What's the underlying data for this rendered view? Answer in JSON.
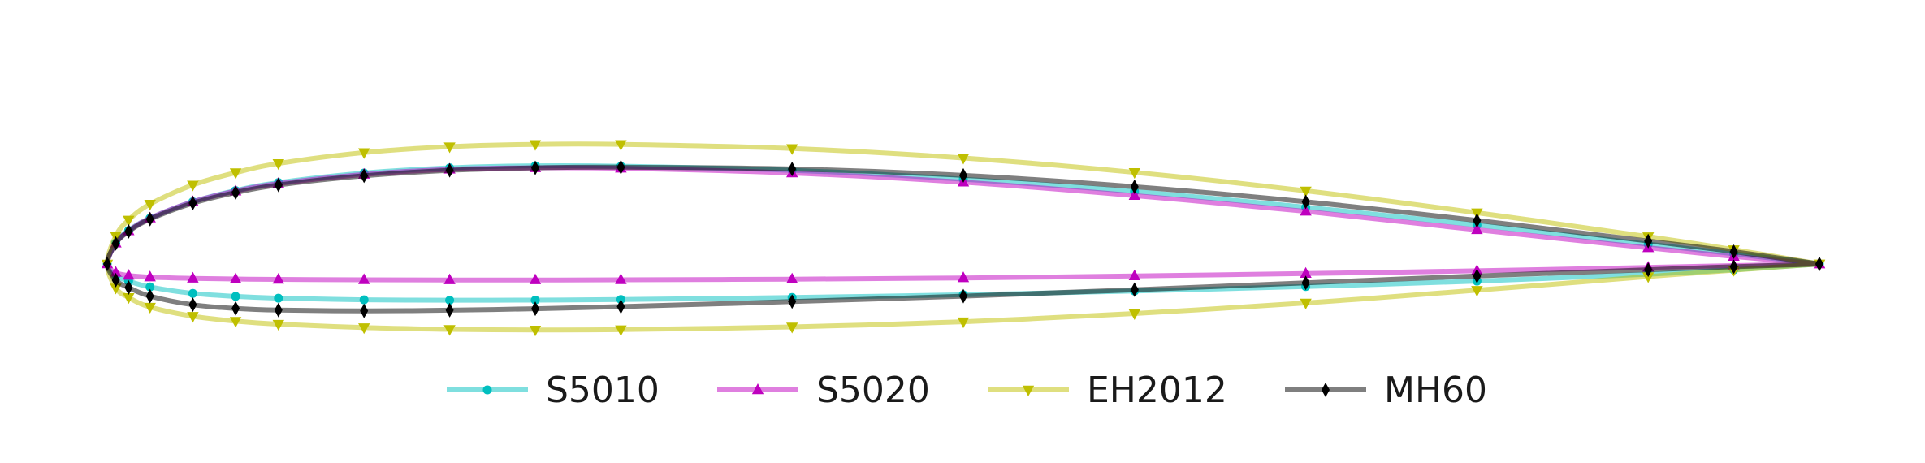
{
  "chart_data": {
    "type": "line",
    "title": "",
    "xlabel": "",
    "ylabel": "",
    "xlim": [
      -0.005,
      1.0
    ],
    "ylim": [
      -0.09,
      0.16
    ],
    "axes_visible": false,
    "grid": false,
    "legend_position": "bottom-center",
    "series": [
      {
        "name": "S5010",
        "color": "#00bfbf",
        "line_alpha": 0.5,
        "marker": "circle",
        "x": [
          1.0,
          0.95,
          0.9,
          0.8,
          0.7,
          0.6,
          0.5,
          0.4,
          0.3,
          0.25,
          0.2,
          0.15,
          0.1,
          0.075,
          0.05,
          0.025,
          0.0125,
          0.005,
          0.0,
          0.005,
          0.0125,
          0.025,
          0.05,
          0.075,
          0.1,
          0.15,
          0.2,
          0.25,
          0.3,
          0.4,
          0.5,
          0.6,
          0.7,
          0.8,
          0.9,
          0.95,
          1.0
        ],
        "y": [
          0.0,
          0.0075,
          0.0145,
          0.0285,
          0.0415,
          0.053,
          0.062,
          0.0685,
          0.0715,
          0.0718,
          0.0703,
          0.0665,
          0.0595,
          0.0537,
          0.0455,
          0.0335,
          0.0245,
          0.0155,
          0.0,
          -0.0085,
          -0.0125,
          -0.0168,
          -0.0215,
          -0.0237,
          -0.025,
          -0.0262,
          -0.0265,
          -0.0264,
          -0.026,
          -0.0245,
          -0.0225,
          -0.0197,
          -0.0165,
          -0.0125,
          -0.0075,
          -0.0042,
          0.0
        ]
      },
      {
        "name": "S5020",
        "color": "#bf00bf",
        "line_alpha": 0.5,
        "marker": "triangle-up",
        "x": [
          1.0,
          0.95,
          0.9,
          0.8,
          0.7,
          0.6,
          0.5,
          0.4,
          0.3,
          0.25,
          0.2,
          0.15,
          0.1,
          0.075,
          0.05,
          0.025,
          0.0125,
          0.005,
          0.0,
          0.005,
          0.0125,
          0.025,
          0.05,
          0.075,
          0.1,
          0.15,
          0.2,
          0.25,
          0.3,
          0.4,
          0.5,
          0.6,
          0.7,
          0.8,
          0.9,
          0.95,
          1.0
        ],
        "y": [
          0.0,
          0.0055,
          0.0118,
          0.025,
          0.0385,
          0.05,
          0.0598,
          0.0665,
          0.07,
          0.0703,
          0.0692,
          0.0655,
          0.0588,
          0.0533,
          0.0455,
          0.0335,
          0.0242,
          0.0152,
          0.0,
          -0.0062,
          -0.0084,
          -0.0096,
          -0.0105,
          -0.011,
          -0.0113,
          -0.0116,
          -0.0117,
          -0.0117,
          -0.0116,
          -0.0111,
          -0.0102,
          -0.0088,
          -0.007,
          -0.005,
          -0.0025,
          -0.0012,
          0.0
        ]
      },
      {
        "name": "EH2012",
        "color": "#bfbf00",
        "line_alpha": 0.5,
        "marker": "triangle-down",
        "x": [
          1.0,
          0.95,
          0.9,
          0.8,
          0.7,
          0.6,
          0.5,
          0.4,
          0.3,
          0.25,
          0.2,
          0.15,
          0.1,
          0.075,
          0.05,
          0.025,
          0.0125,
          0.005,
          0.0,
          0.005,
          0.0125,
          0.025,
          0.05,
          0.075,
          0.1,
          0.15,
          0.2,
          0.25,
          0.3,
          0.4,
          0.5,
          0.6,
          0.7,
          0.8,
          0.9,
          0.95,
          1.0
        ],
        "y": [
          0.0,
          0.0105,
          0.02,
          0.0375,
          0.0535,
          0.067,
          0.0775,
          0.0845,
          0.0875,
          0.0875,
          0.0858,
          0.0815,
          0.0735,
          0.0668,
          0.0578,
          0.0438,
          0.0322,
          0.0205,
          0.0,
          -0.0175,
          -0.0245,
          -0.0315,
          -0.0382,
          -0.0418,
          -0.044,
          -0.0465,
          -0.0478,
          -0.0482,
          -0.048,
          -0.046,
          -0.0422,
          -0.0362,
          -0.0285,
          -0.0192,
          -0.0092,
          -0.0045,
          0.0
        ]
      },
      {
        "name": "MH60",
        "color": "#000000",
        "line_alpha": 0.5,
        "marker": "thin-diamond",
        "x": [
          1.0,
          0.95,
          0.9,
          0.8,
          0.7,
          0.6,
          0.5,
          0.4,
          0.3,
          0.25,
          0.2,
          0.15,
          0.1,
          0.075,
          0.05,
          0.025,
          0.0125,
          0.005,
          0.0,
          0.005,
          0.0125,
          0.025,
          0.05,
          0.075,
          0.1,
          0.15,
          0.2,
          0.25,
          0.3,
          0.4,
          0.5,
          0.6,
          0.7,
          0.8,
          0.9,
          0.95,
          1.0
        ],
        "y": [
          0.0,
          0.009,
          0.0168,
          0.0318,
          0.0455,
          0.0565,
          0.0648,
          0.0695,
          0.0708,
          0.0703,
          0.0685,
          0.0645,
          0.0578,
          0.0522,
          0.0445,
          0.0328,
          0.0238,
          0.015,
          0.0,
          -0.0118,
          -0.0172,
          -0.0235,
          -0.0298,
          -0.0325,
          -0.0337,
          -0.0343,
          -0.0338,
          -0.0327,
          -0.0312,
          -0.0275,
          -0.0235,
          -0.0188,
          -0.0138,
          -0.0088,
          -0.0042,
          -0.002,
          0.0
        ]
      }
    ]
  }
}
